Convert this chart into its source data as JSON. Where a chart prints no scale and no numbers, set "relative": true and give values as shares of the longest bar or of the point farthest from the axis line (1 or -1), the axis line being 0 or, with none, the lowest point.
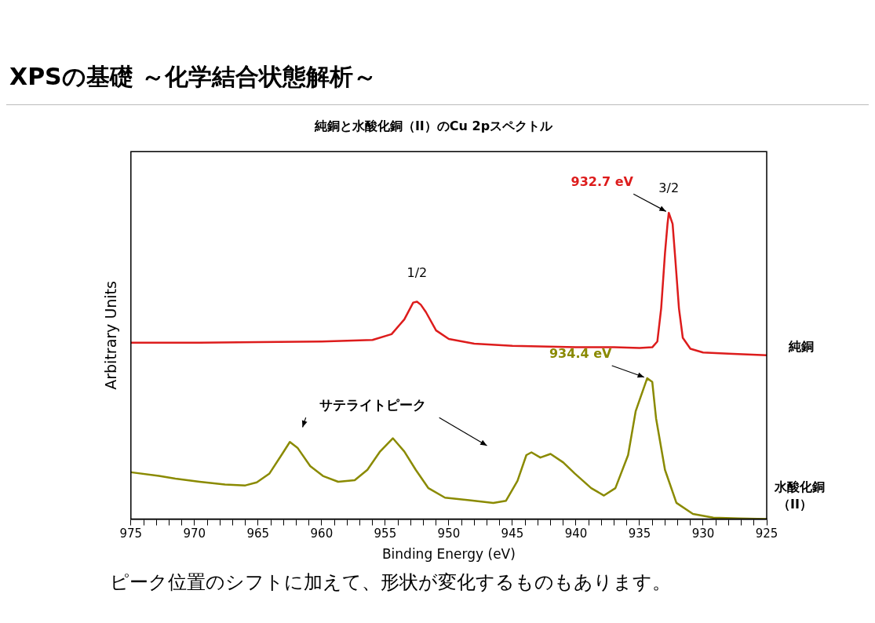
{
  "chart_data": {
    "type": "line",
    "title": "XPSの基礎 ～化学結合状態解析～",
    "subtitle": "純銅と水酸化銅（II）のCu 2pスペクトル",
    "xlabel": "Binding Energy (eV)",
    "ylabel": "Arbitrary Units",
    "relative": true,
    "legend": false,
    "grid": false,
    "marker": "none",
    "line_style": "solid",
    "xlim": [
      975,
      925
    ],
    "xticks": [
      975,
      {
        "value": 974,
        "label": null
      },
      {
        "value": 973,
        "label": null
      },
      {
        "value": 972,
        "label": null
      },
      {
        "value": 971,
        "label": null
      },
      970,
      {
        "value": 969,
        "label": null
      },
      {
        "value": 968,
        "label": null
      },
      {
        "value": 967,
        "label": null
      },
      {
        "value": 966,
        "label": null
      },
      965,
      {
        "value": 964,
        "label": null
      },
      {
        "value": 963,
        "label": null
      },
      {
        "value": 962,
        "label": null
      },
      {
        "value": 961,
        "label": null
      },
      960,
      {
        "value": 959,
        "label": null
      },
      {
        "value": 958,
        "label": null
      },
      {
        "value": 957,
        "label": null
      },
      {
        "value": 956,
        "label": null
      },
      955,
      {
        "value": 954,
        "label": null
      },
      {
        "value": 953,
        "label": null
      },
      {
        "value": 952,
        "label": null
      },
      {
        "value": 951,
        "label": null
      },
      950,
      {
        "value": 949,
        "label": null
      },
      {
        "value": 948,
        "label": null
      },
      {
        "value": 947,
        "label": null
      },
      {
        "value": 946,
        "label": null
      },
      945,
      {
        "value": 944,
        "label": null
      },
      {
        "value": 943,
        "label": null
      },
      {
        "value": 942,
        "label": null
      },
      {
        "value": 941,
        "label": null
      },
      940,
      {
        "value": 939,
        "label": null
      },
      {
        "value": 938,
        "label": null
      },
      {
        "value": 937,
        "label": null
      },
      {
        "value": 936,
        "label": null
      },
      935,
      {
        "value": 934,
        "label": null
      },
      {
        "value": 933,
        "label": null
      },
      {
        "value": 932,
        "label": null
      },
      {
        "value": 931,
        "label": null
      },
      930,
      {
        "value": 929,
        "label": null
      },
      {
        "value": 928,
        "label": null
      },
      {
        "value": 927,
        "label": null
      },
      {
        "value": 926,
        "label": null
      },
      925
    ],
    "series": [
      {
        "name": "純銅",
        "color": "#dd1c1c",
        "x": [
          975,
          970,
          965,
          960,
          956,
          954.5,
          953.5,
          952.8,
          952.5,
          952.2,
          951.8,
          951,
          950,
          948,
          945,
          940,
          937,
          935,
          934,
          933.6,
          933.3,
          933,
          932.8,
          932.7,
          932.4,
          932.2,
          931.9,
          931.6,
          931,
          930,
          928,
          925
        ],
        "values": [
          0.576,
          0.576,
          0.578,
          0.58,
          0.585,
          0.604,
          0.652,
          0.707,
          0.71,
          0.7,
          0.676,
          0.616,
          0.588,
          0.573,
          0.566,
          0.561,
          0.561,
          0.559,
          0.561,
          0.58,
          0.688,
          0.868,
          0.964,
          1,
          0.964,
          0.856,
          0.688,
          0.592,
          0.556,
          0.544,
          0.54,
          0.535
        ]
      },
      {
        "name": "水酸化銅（II）",
        "color": "#8a8a00",
        "x": [
          975,
          972.8,
          971.5,
          969.6,
          967.6,
          966,
          965.1,
          964.1,
          963.1,
          962.5,
          961.9,
          960.9,
          959.9,
          958.7,
          957.4,
          956.4,
          955.4,
          954.4,
          953.5,
          952.6,
          951.6,
          950.3,
          948.4,
          946.5,
          945.5,
          944.6,
          943.9,
          943.5,
          942.8,
          942,
          941,
          940.1,
          938.8,
          937.8,
          936.9,
          935.9,
          935.3,
          934.4,
          934,
          933.7,
          933,
          932.1,
          930.8,
          929.2,
          927.2,
          925
        ],
        "values": [
          0.153,
          0.141,
          0.132,
          0.122,
          0.113,
          0.11,
          0.12,
          0.149,
          0.213,
          0.252,
          0.233,
          0.173,
          0.141,
          0.122,
          0.127,
          0.161,
          0.221,
          0.264,
          0.221,
          0.161,
          0.101,
          0.07,
          0.062,
          0.053,
          0.06,
          0.125,
          0.209,
          0.218,
          0.201,
          0.213,
          0.185,
          0.149,
          0.101,
          0.077,
          0.101,
          0.209,
          0.353,
          0.46,
          0.448,
          0.329,
          0.161,
          0.053,
          0.017,
          0.005,
          0.002,
          0
        ]
      }
    ],
    "annotations": [
      {
        "text": "3/2",
        "x": 932.7,
        "y": 1
      },
      {
        "text": "1/2",
        "x": 952.5,
        "y": 0.71
      },
      {
        "text": "932.7 eV",
        "x": 932.7,
        "y": 1
      },
      {
        "text": "934.4 eV",
        "x": 934.4,
        "y": 0.46
      },
      "サテライトピーク",
      "ピーク位置のシフトに加えて、形状が変化するものもあります。"
    ]
  }
}
